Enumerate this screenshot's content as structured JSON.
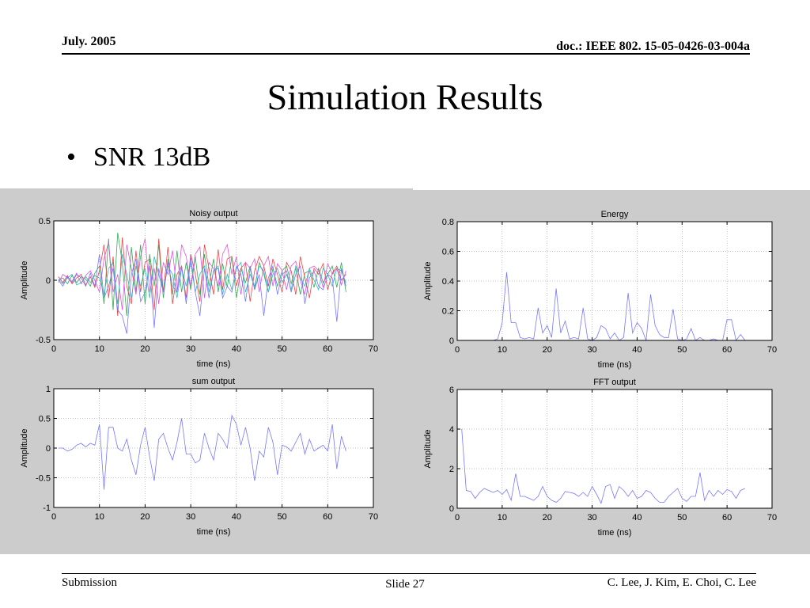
{
  "header": {
    "date": "July. 2005",
    "doc_id": "doc.: IEEE 802. 15-05-0426-03-004a"
  },
  "slide": {
    "title": "Simulation Results",
    "bullet": "SNR 13dB"
  },
  "footer": {
    "left": "Submission",
    "center": "Slide 27",
    "right": "C. Lee, J. Kim, E. Choi, C. Lee"
  },
  "colors": {
    "panel_bg": "#cccccc",
    "series_blue": "#7777ff",
    "series_green": "#33aa55",
    "series_red": "#ee4444",
    "series_magenta": "#dd55dd",
    "series_cyan": "#33bbbb"
  },
  "chart_data": [
    {
      "type": "line",
      "title": "Noisy output",
      "xlabel": "time (ns)",
      "ylabel": "Amplitude",
      "xlim": [
        0,
        70
      ],
      "ylim": [
        -0.5,
        0.5
      ],
      "xticks": [
        0,
        10,
        20,
        30,
        40,
        50,
        60,
        70
      ],
      "yticks": [
        -0.5,
        0,
        0.5
      ],
      "ytick_labels": [
        "-0.5",
        "0",
        "0.5"
      ],
      "grid": true,
      "x": [
        1,
        2,
        3,
        4,
        5,
        6,
        7,
        8,
        9,
        10,
        11,
        12,
        13,
        14,
        15,
        16,
        17,
        18,
        19,
        20,
        21,
        22,
        23,
        24,
        25,
        26,
        27,
        28,
        29,
        30,
        31,
        32,
        33,
        34,
        35,
        36,
        37,
        38,
        39,
        40,
        41,
        42,
        43,
        44,
        45,
        46,
        47,
        48,
        49,
        50,
        51,
        52,
        53,
        54,
        55,
        56,
        57,
        58,
        59,
        60,
        61,
        62,
        63,
        64
      ],
      "series": [
        {
          "color": "#33aa55",
          "values": [
            0.0,
            0.02,
            -0.03,
            0.04,
            -0.02,
            0.03,
            0.01,
            -0.05,
            0.06,
            0.12,
            -0.2,
            0.35,
            -0.25,
            0.4,
            0.15,
            -0.3,
            0.28,
            -0.1,
            0.3,
            -0.2,
            0.22,
            -0.05,
            0.3,
            -0.15,
            0.18,
            -0.12,
            0.25,
            -0.1,
            0.15,
            -0.08,
            0.2,
            -0.12,
            0.22,
            -0.05,
            0.18,
            -0.1,
            0.14,
            -0.06,
            0.2,
            -0.15,
            0.1,
            -0.02,
            0.12,
            -0.08,
            0.15,
            0.05,
            -0.1,
            0.1,
            -0.05,
            0.08,
            0.12,
            -0.03,
            0.1,
            -0.12,
            0.06,
            0.08,
            -0.06,
            0.1,
            -0.02,
            0.05,
            0.12,
            -0.06,
            0.15,
            -0.1
          ]
        },
        {
          "color": "#ee4444",
          "values": [
            0.03,
            -0.02,
            0.04,
            -0.03,
            0.02,
            0.05,
            -0.04,
            0.03,
            -0.06,
            0.08,
            0.3,
            -0.15,
            0.2,
            -0.3,
            0.36,
            -0.05,
            -0.2,
            0.25,
            -0.1,
            0.15,
            0.18,
            -0.25,
            0.35,
            -0.1,
            0.28,
            -0.2,
            0.05,
            0.12,
            -0.15,
            0.22,
            0.05,
            -0.18,
            0.3,
            0.1,
            -0.12,
            0.26,
            -0.08,
            0.18,
            0.2,
            -0.05,
            0.1,
            0.15,
            -0.18,
            0.08,
            0.2,
            0.12,
            -0.05,
            0.18,
            0.05,
            -0.1,
            0.15,
            0.08,
            -0.12,
            0.2,
            0.02,
            -0.15,
            0.1,
            0.05,
            0.14,
            -0.08,
            0.06,
            0.12,
            0.0,
            0.05
          ]
        },
        {
          "color": "#dd55dd",
          "values": [
            -0.02,
            0.05,
            0.02,
            -0.01,
            0.06,
            -0.03,
            0.04,
            0.08,
            0.0,
            -0.1,
            0.18,
            0.32,
            -0.1,
            0.05,
            -0.25,
            0.3,
            0.1,
            -0.12,
            0.2,
            0.35,
            -0.1,
            0.1,
            -0.2,
            0.15,
            0.05,
            0.25,
            -0.1,
            0.3,
            0.2,
            -0.05,
            0.22,
            0.28,
            -0.15,
            0.15,
            0.1,
            -0.05,
            0.22,
            0.3,
            0.05,
            0.2,
            -0.12,
            0.15,
            0.1,
            0.18,
            -0.1,
            0.12,
            0.2,
            -0.05,
            0.14,
            0.08,
            -0.08,
            0.12,
            0.16,
            0.0,
            -0.12,
            0.1,
            0.12,
            0.08,
            -0.06,
            0.14,
            0.05,
            0.1,
            -0.04,
            0.08
          ]
        },
        {
          "color": "#33bbbb",
          "values": [
            0.01,
            -0.03,
            0.02,
            0.05,
            -0.04,
            -0.02,
            0.03,
            -0.02,
            0.04,
            0.02,
            -0.12,
            0.1,
            0.15,
            -0.2,
            0.22,
            0.05,
            -0.15,
            0.12,
            -0.05,
            0.1,
            -0.15,
            0.2,
            0.05,
            -0.1,
            0.12,
            0.05,
            -0.15,
            0.1,
            -0.05,
            0.15,
            -0.1,
            0.05,
            0.12,
            -0.1,
            0.08,
            0.12,
            -0.12,
            0.05,
            -0.08,
            0.1,
            0.15,
            -0.1,
            0.05,
            -0.05,
            0.12,
            0.08,
            -0.1,
            0.05,
            0.1,
            -0.02,
            0.05,
            -0.08,
            0.12,
            0.02,
            -0.05,
            0.1,
            0.0,
            -0.08,
            0.1,
            0.05,
            -0.05,
            0.1,
            0.08,
            -0.02
          ]
        },
        {
          "color": "#7777ff",
          "values": [
            0.0,
            -0.05,
            0.03,
            -0.02,
            0.05,
            0.02,
            -0.05,
            0.06,
            -0.05,
            0.22,
            -0.15,
            -0.05,
            0.1,
            -0.25,
            -0.3,
            -0.45,
            0.05,
            0.18,
            -0.18,
            -0.1,
            0.12,
            -0.4,
            0.1,
            -0.1,
            0.15,
            -0.05,
            -0.1,
            0.12,
            -0.2,
            0.2,
            -0.1,
            -0.3,
            0.1,
            -0.15,
            0.08,
            0.1,
            -0.15,
            -0.05,
            -0.1,
            0.12,
            0.05,
            -0.18,
            0.1,
            -0.08,
            0.05,
            -0.3,
            0.02,
            0.12,
            -0.12,
            0.05,
            0.08,
            -0.1,
            0.05,
            0.12,
            -0.2,
            0.02,
            0.08,
            -0.05,
            -0.08,
            0.05,
            0.02,
            -0.35,
            0.1,
            -0.05
          ]
        }
      ]
    },
    {
      "type": "line",
      "title": "Energy",
      "xlabel": "time (ns)",
      "ylabel": "Amplitude",
      "xlim": [
        0,
        70
      ],
      "ylim": [
        0,
        0.8
      ],
      "xticks": [
        0,
        10,
        20,
        30,
        40,
        50,
        60,
        70
      ],
      "yticks": [
        0,
        0.2,
        0.4,
        0.6,
        0.8
      ],
      "ytick_labels": [
        "0",
        "0.2",
        "0.4",
        "0.6",
        "0.8"
      ],
      "grid": true,
      "x": [
        1,
        2,
        3,
        4,
        5,
        6,
        7,
        8,
        9,
        10,
        11,
        12,
        13,
        14,
        15,
        16,
        17,
        18,
        19,
        20,
        21,
        22,
        23,
        24,
        25,
        26,
        27,
        28,
        29,
        30,
        31,
        32,
        33,
        34,
        35,
        36,
        37,
        38,
        39,
        40,
        41,
        42,
        43,
        44,
        45,
        46,
        47,
        48,
        49,
        50,
        51,
        52,
        53,
        54,
        55,
        56,
        57,
        58,
        59,
        60,
        61,
        62,
        63,
        64
      ],
      "series": [
        {
          "color": "#7777ff",
          "values": [
            0.0,
            0.0,
            0.0,
            0.0,
            0.0,
            0.0,
            0.0,
            0.0,
            0.01,
            0.12,
            0.46,
            0.12,
            0.12,
            0.02,
            0.01,
            0.02,
            0.01,
            0.22,
            0.05,
            0.1,
            0.02,
            0.35,
            0.05,
            0.13,
            0.01,
            0.02,
            0.01,
            0.22,
            0.01,
            0.0,
            0.02,
            0.1,
            0.08,
            0.01,
            0.05,
            0.0,
            0.02,
            0.32,
            0.05,
            0.12,
            0.08,
            0.0,
            0.31,
            0.1,
            0.04,
            0.02,
            0.02,
            0.21,
            0.01,
            0.0,
            0.01,
            0.08,
            0.0,
            0.02,
            0.0,
            0.0,
            0.01,
            0.0,
            0.0,
            0.14,
            0.14,
            0.0,
            0.04,
            0.0
          ]
        }
      ]
    },
    {
      "type": "line",
      "title": "sum output",
      "xlabel": "time (ns)",
      "ylabel": "Amplitude",
      "xlim": [
        0,
        70
      ],
      "ylim": [
        -1,
        1
      ],
      "xticks": [
        0,
        10,
        20,
        30,
        40,
        50,
        60,
        70
      ],
      "yticks": [
        -1,
        -0.5,
        0,
        0.5,
        1
      ],
      "ytick_labels": [
        "-1",
        "-0.5",
        "0",
        "0.5",
        "1"
      ],
      "grid": true,
      "x": [
        1,
        2,
        3,
        4,
        5,
        6,
        7,
        8,
        9,
        10,
        11,
        12,
        13,
        14,
        15,
        16,
        17,
        18,
        19,
        20,
        21,
        22,
        23,
        24,
        25,
        26,
        27,
        28,
        29,
        30,
        31,
        32,
        33,
        34,
        35,
        36,
        37,
        38,
        39,
        40,
        41,
        42,
        43,
        44,
        45,
        46,
        47,
        48,
        49,
        50,
        51,
        52,
        53,
        54,
        55,
        56,
        57,
        58,
        59,
        60,
        61,
        62,
        63,
        64
      ],
      "series": [
        {
          "color": "#7777ff",
          "values": [
            0.0,
            0.0,
            -0.05,
            -0.02,
            0.05,
            0.08,
            0.02,
            0.08,
            0.05,
            0.4,
            -0.7,
            0.35,
            0.35,
            0.0,
            -0.05,
            0.15,
            -0.2,
            -0.45,
            0.05,
            0.35,
            -0.15,
            -0.55,
            0.15,
            0.25,
            0.0,
            -0.2,
            0.1,
            0.5,
            -0.1,
            -0.1,
            -0.25,
            -0.2,
            0.25,
            0.0,
            -0.2,
            0.25,
            0.15,
            0.0,
            0.55,
            0.4,
            0.05,
            0.35,
            0.0,
            -0.55,
            -0.05,
            -0.15,
            0.35,
            0.1,
            -0.45,
            0.05,
            0.02,
            -0.05,
            0.1,
            0.25,
            -0.1,
            0.15,
            -0.05,
            0.0,
            0.05,
            -0.05,
            0.4,
            -0.35,
            0.2,
            -0.05
          ]
        }
      ]
    },
    {
      "type": "line",
      "title": "FFT output",
      "xlabel": "time (ns)",
      "ylabel": "Amplitude",
      "xlim": [
        0,
        70
      ],
      "ylim": [
        0,
        6
      ],
      "xticks": [
        0,
        10,
        20,
        30,
        40,
        50,
        60,
        70
      ],
      "yticks": [
        0,
        2,
        4,
        6
      ],
      "ytick_labels": [
        "0",
        "2",
        "4",
        "6"
      ],
      "grid": true,
      "x": [
        1,
        2,
        3,
        4,
        5,
        6,
        7,
        8,
        9,
        10,
        11,
        12,
        13,
        14,
        15,
        16,
        17,
        18,
        19,
        20,
        21,
        22,
        23,
        24,
        25,
        26,
        27,
        28,
        29,
        30,
        31,
        32,
        33,
        34,
        35,
        36,
        37,
        38,
        39,
        40,
        41,
        42,
        43,
        44,
        45,
        46,
        47,
        48,
        49,
        50,
        51,
        52,
        53,
        54,
        55,
        56,
        57,
        58,
        59,
        60,
        61,
        62,
        63,
        64
      ],
      "series": [
        {
          "color": "#7777ff",
          "values": [
            4.0,
            0.9,
            0.85,
            0.5,
            0.8,
            1.0,
            0.9,
            0.8,
            0.9,
            0.7,
            0.95,
            0.4,
            1.75,
            0.6,
            0.6,
            0.5,
            0.4,
            0.6,
            1.1,
            0.6,
            0.4,
            0.3,
            0.5,
            0.85,
            0.8,
            0.75,
            0.6,
            0.8,
            0.6,
            1.1,
            0.7,
            0.25,
            1.1,
            1.2,
            0.5,
            1.1,
            0.9,
            0.6,
            0.9,
            0.5,
            0.6,
            0.9,
            0.8,
            0.5,
            0.3,
            0.3,
            0.6,
            0.8,
            1.0,
            0.5,
            0.35,
            0.6,
            0.6,
            1.8,
            0.4,
            0.9,
            0.6,
            0.9,
            0.7,
            0.95,
            0.85,
            0.5,
            0.9,
            1.0
          ]
        }
      ]
    }
  ]
}
